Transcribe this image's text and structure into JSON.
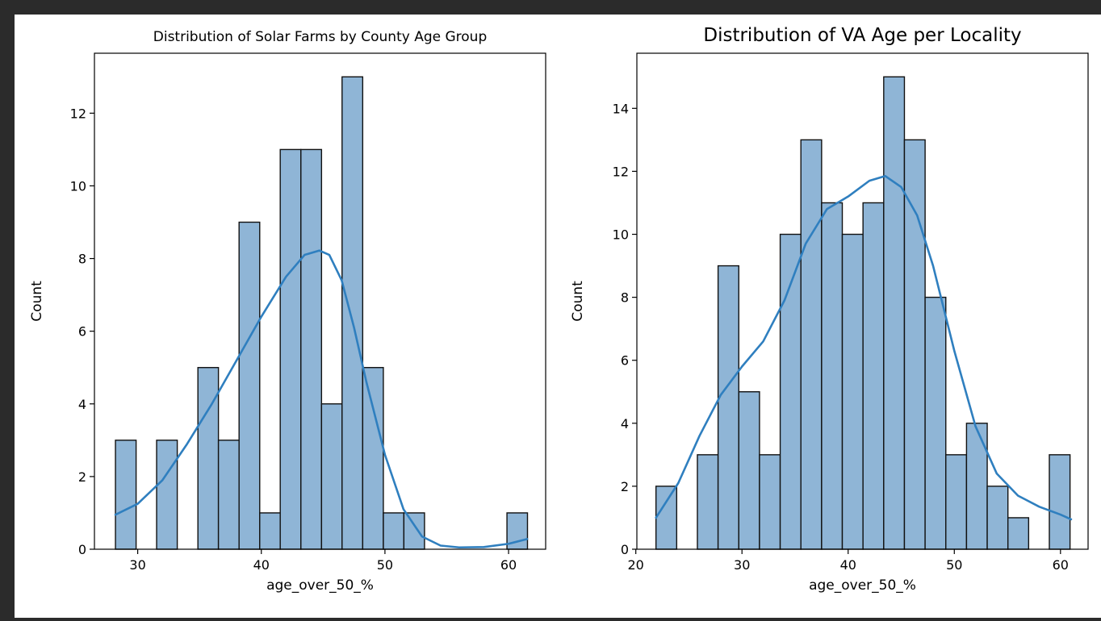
{
  "colors": {
    "bar_fill": "#8fb5d6",
    "bar_edge": "#111111",
    "kde_line": "#2f7fbf"
  },
  "chart_data": [
    {
      "type": "histogram",
      "title": "Distribution of Solar Farms by County Age Group",
      "xlabel": "age_over_50_%",
      "ylabel": "Count",
      "xlim": [
        26.5,
        63
      ],
      "ylim": [
        0,
        13.65
      ],
      "xticks": [
        30,
        40,
        50,
        60
      ],
      "yticks": [
        0,
        2,
        4,
        6,
        8,
        10,
        12
      ],
      "bin_edges": [
        28.2,
        29.87,
        31.53,
        33.2,
        34.87,
        36.53,
        38.2,
        39.87,
        41.53,
        43.2,
        44.87,
        46.53,
        48.2,
        49.87,
        51.53,
        53.2,
        54.87,
        56.53,
        58.2,
        59.87,
        61.53
      ],
      "counts": [
        3,
        0,
        3,
        0,
        5,
        3,
        9,
        1,
        11,
        11,
        4,
        13,
        5,
        1,
        1,
        0,
        0,
        0,
        0,
        1
      ],
      "kde": {
        "x": [
          28.2,
          30,
          32,
          34,
          36,
          38,
          40,
          42,
          43.5,
          44.7,
          45.5,
          46.5,
          47.5,
          48.5,
          50,
          51.5,
          53,
          54.5,
          56,
          58,
          60,
          61.5
        ],
        "y": [
          0.95,
          1.25,
          1.9,
          2.9,
          4.0,
          5.2,
          6.4,
          7.5,
          8.1,
          8.22,
          8.1,
          7.4,
          6.1,
          4.6,
          2.6,
          1.1,
          0.35,
          0.1,
          0.05,
          0.06,
          0.15,
          0.28
        ]
      },
      "grid": false
    },
    {
      "type": "histogram",
      "title": "Distribution of VA Age per Locality",
      "xlabel": "age_over_50_%",
      "ylabel": "Count",
      "xlim": [
        20.1,
        62.6
      ],
      "ylim": [
        0,
        15.75
      ],
      "xticks": [
        20,
        30,
        40,
        50,
        60
      ],
      "yticks": [
        0,
        2,
        4,
        6,
        8,
        10,
        12,
        14
      ],
      "bin_edges": [
        21.9,
        23.85,
        25.8,
        27.75,
        29.7,
        31.65,
        33.6,
        35.55,
        37.5,
        39.45,
        41.4,
        43.35,
        45.3,
        47.25,
        49.2,
        51.15,
        53.1,
        55.05,
        57.0,
        58.95,
        60.9
      ],
      "counts": [
        2,
        0,
        3,
        9,
        5,
        3,
        10,
        13,
        11,
        10,
        11,
        15,
        13,
        8,
        3,
        4,
        2,
        1,
        0,
        3
      ],
      "kde": {
        "x": [
          21.9,
          24,
          26,
          28,
          30,
          32,
          34,
          36,
          38,
          40,
          42,
          43.5,
          45,
          46.5,
          48,
          50,
          52,
          54,
          56,
          58,
          60,
          61
        ],
        "y": [
          1.0,
          2.1,
          3.6,
          4.9,
          5.8,
          6.6,
          7.9,
          9.7,
          10.8,
          11.2,
          11.7,
          11.85,
          11.5,
          10.6,
          9.0,
          6.3,
          3.9,
          2.4,
          1.7,
          1.35,
          1.1,
          0.95
        ]
      },
      "grid": false
    }
  ]
}
